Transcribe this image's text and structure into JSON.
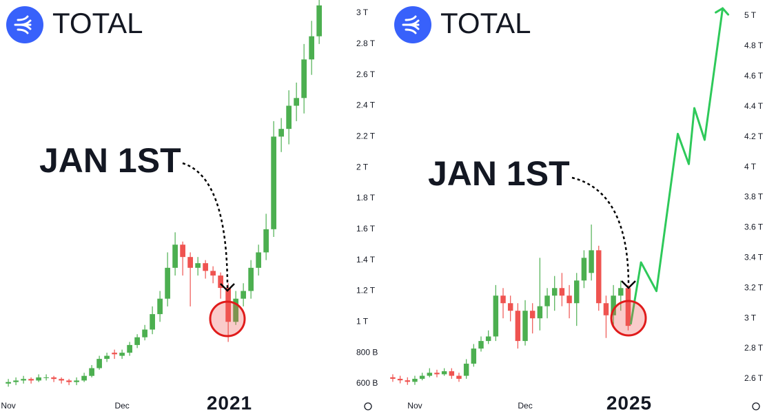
{
  "chart_data": [
    {
      "type": "candlestick",
      "title": "TOTAL",
      "annotation": "JAN 1ST",
      "year_label": "2021",
      "up_color": "#4caf50",
      "down_color": "#ef5350",
      "xlim": [
        -2.2,
        88.7
      ],
      "ylim": [
        0.39,
        3.085
      ],
      "xticks": [
        {
          "value": 0,
          "label": "Nov"
        },
        {
          "value": 30,
          "label": "Dec"
        }
      ],
      "yticks": [
        {
          "value": 0.6,
          "label": "600 B"
        },
        {
          "value": 0.8,
          "label": "800 B"
        },
        {
          "value": 1,
          "label": "1 T"
        },
        {
          "value": 1.2,
          "label": "1.2 T"
        },
        {
          "value": 1.4,
          "label": "1.4 T"
        },
        {
          "value": 1.6,
          "label": "1.6 T"
        },
        {
          "value": 1.8,
          "label": "1.8 T"
        },
        {
          "value": 2,
          "label": "2 T"
        },
        {
          "value": 2.2,
          "label": "2.2 T"
        },
        {
          "value": 2.4,
          "label": "2.4 T"
        },
        {
          "value": 2.6,
          "label": "2.6 T"
        },
        {
          "value": 2.8,
          "label": "2.8 T"
        },
        {
          "value": 3,
          "label": "3 T"
        }
      ],
      "x": [
        0,
        2,
        4,
        6,
        8,
        10,
        12,
        14,
        16,
        18,
        20,
        22,
        24,
        26,
        28,
        30,
        32,
        34,
        36,
        38,
        40,
        42,
        44,
        46,
        48,
        50,
        52,
        54,
        56,
        58,
        60,
        62,
        64,
        66,
        68,
        70,
        72,
        74,
        76,
        78,
        80,
        82
      ],
      "open": [
        0.6,
        0.61,
        0.62,
        0.63,
        0.62,
        0.64,
        0.64,
        0.63,
        0.62,
        0.61,
        0.62,
        0.65,
        0.7,
        0.76,
        0.8,
        0.78,
        0.8,
        0.85,
        0.9,
        0.95,
        1.05,
        1.15,
        1.35,
        1.5,
        1.42,
        1.35,
        1.38,
        1.33,
        1.3,
        1.22,
        1.0,
        1.15,
        1.2,
        1.35,
        1.45,
        1.6,
        2.2,
        2.25,
        2.4,
        2.45,
        2.7,
        2.85
      ],
      "high": [
        0.63,
        0.64,
        0.65,
        0.64,
        0.66,
        0.66,
        0.65,
        0.64,
        0.63,
        0.64,
        0.67,
        0.72,
        0.78,
        0.8,
        0.82,
        0.82,
        0.87,
        0.92,
        0.98,
        1.1,
        1.2,
        1.45,
        1.58,
        1.52,
        1.45,
        1.42,
        1.4,
        1.36,
        1.32,
        1.25,
        1.2,
        1.25,
        1.4,
        1.5,
        1.7,
        2.3,
        2.32,
        2.5,
        2.55,
        2.8,
        2.95,
        3.1
      ],
      "low": [
        0.58,
        0.59,
        0.6,
        0.6,
        0.61,
        0.62,
        0.61,
        0.6,
        0.59,
        0.59,
        0.61,
        0.64,
        0.69,
        0.74,
        0.76,
        0.76,
        0.78,
        0.83,
        0.88,
        0.92,
        1.0,
        1.1,
        1.3,
        1.3,
        1.1,
        1.3,
        1.28,
        1.25,
        1.15,
        0.87,
        0.98,
        1.1,
        1.15,
        1.3,
        1.4,
        1.55,
        2.1,
        2.15,
        2.3,
        2.35,
        2.6,
        2.8
      ],
      "close": [
        0.61,
        0.62,
        0.63,
        0.62,
        0.64,
        0.64,
        0.63,
        0.62,
        0.61,
        0.62,
        0.65,
        0.7,
        0.76,
        0.78,
        0.79,
        0.8,
        0.85,
        0.9,
        0.95,
        1.05,
        1.15,
        1.35,
        1.5,
        1.42,
        1.35,
        1.38,
        1.33,
        1.3,
        1.22,
        1.0,
        1.15,
        1.2,
        1.35,
        1.45,
        1.6,
        2.2,
        2.25,
        2.4,
        2.45,
        2.7,
        2.85,
        3.05
      ]
    },
    {
      "type": "candlestick",
      "title": "TOTAL",
      "annotation": "JAN 1ST",
      "year_label": "2025",
      "up_color": "#4caf50",
      "down_color": "#ef5350",
      "xlim": [
        -7.3,
        86.4
      ],
      "ylim": [
        2.354,
        5.105
      ],
      "xticks": [
        {
          "value": 0,
          "label": "Nov"
        },
        {
          "value": 30,
          "label": "Dec"
        }
      ],
      "yticks": [
        {
          "value": 2.6,
          "label": "2.6 T"
        },
        {
          "value": 2.8,
          "label": "2.8 T"
        },
        {
          "value": 3,
          "label": "3 T"
        },
        {
          "value": 3.2,
          "label": "3.2 T"
        },
        {
          "value": 3.4,
          "label": "3.4 T"
        },
        {
          "value": 3.6,
          "label": "3.6 T"
        },
        {
          "value": 3.8,
          "label": "3.8 T"
        },
        {
          "value": 4,
          "label": "4 T"
        },
        {
          "value": 4.2,
          "label": "4.2 T"
        },
        {
          "value": 4.4,
          "label": "4.4 T"
        },
        {
          "value": 4.6,
          "label": "4.6 T"
        },
        {
          "value": 4.8,
          "label": "4.8 T"
        },
        {
          "value": 5,
          "label": "5 T"
        }
      ],
      "x": [
        -6,
        -4,
        -2,
        0,
        2,
        4,
        6,
        8,
        10,
        12,
        14,
        16,
        18,
        20,
        22,
        24,
        26,
        28,
        30,
        32,
        34,
        36,
        38,
        40,
        42,
        44,
        46,
        48,
        50,
        52,
        54,
        56,
        58
      ],
      "open": [
        2.61,
        2.6,
        2.59,
        2.58,
        2.6,
        2.62,
        2.64,
        2.63,
        2.65,
        2.62,
        2.62,
        2.7,
        2.8,
        2.85,
        2.88,
        3.15,
        3.1,
        3.05,
        2.85,
        3.05,
        3.0,
        3.08,
        3.15,
        3.2,
        3.15,
        3.1,
        3.25,
        3.3,
        3.45,
        3.1,
        3.02,
        3.15,
        3.2
      ],
      "high": [
        2.63,
        2.62,
        2.61,
        2.62,
        2.64,
        2.67,
        2.66,
        2.67,
        2.67,
        2.64,
        2.73,
        2.83,
        2.88,
        2.92,
        3.22,
        3.2,
        3.15,
        3.1,
        3.12,
        3.1,
        3.4,
        3.2,
        3.28,
        3.3,
        3.22,
        3.3,
        3.45,
        3.62,
        3.48,
        3.15,
        3.22,
        3.25,
        3.22
      ],
      "low": [
        2.58,
        2.57,
        2.56,
        2.56,
        2.59,
        2.61,
        2.61,
        2.62,
        2.6,
        2.58,
        2.6,
        2.68,
        2.78,
        2.83,
        2.85,
        3.0,
        2.98,
        2.8,
        2.82,
        2.9,
        2.92,
        3.0,
        3.05,
        3.08,
        3.0,
        2.95,
        3.2,
        3.25,
        3.05,
        2.87,
        2.95,
        3.05,
        2.92
      ],
      "close": [
        2.6,
        2.59,
        2.58,
        2.6,
        2.62,
        2.64,
        2.63,
        2.65,
        2.62,
        2.6,
        2.7,
        2.8,
        2.85,
        2.88,
        3.15,
        3.1,
        3.05,
        2.85,
        3.05,
        3.0,
        3.08,
        3.15,
        3.2,
        3.15,
        3.1,
        3.25,
        3.4,
        3.45,
        3.1,
        3.02,
        3.15,
        3.2,
        2.95
      ],
      "projection": {
        "color": "#2ec95a",
        "x": [
          58.7,
          61.5,
          65.7,
          71.5,
          74.5,
          76,
          78.8,
          83.7
        ],
        "values": [
          2.96,
          3.37,
          3.18,
          4.22,
          4.02,
          4.39,
          4.18,
          5.05
        ]
      }
    }
  ]
}
